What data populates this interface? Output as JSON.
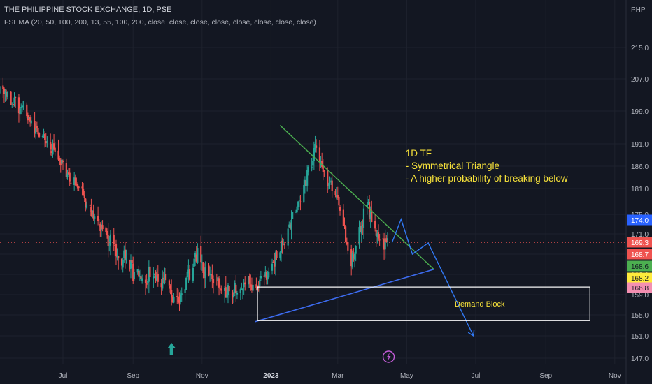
{
  "header": {
    "title": "THE PHILIPPINE STOCK EXCHANGE, 1D, PSE",
    "indicator": "FSEMA (20, 50, 100, 200, 13, 55, 100, 200, close, close, close, close, close, close, close, close)",
    "currency": "PHP"
  },
  "colors": {
    "background": "#131722",
    "grid": "#1e222d",
    "up": "#26a69a",
    "down": "#ef5350",
    "resistance_line": "#4caf50",
    "support_line": "#3d6cf0",
    "projection": "#3179f5",
    "annotation_text": "#f7e23a",
    "box": "#ffffff",
    "axis_text": "#b2b5be"
  },
  "chart_data": {
    "type": "candlestick",
    "x_ticks": [
      "Jul",
      "Sep",
      "Nov",
      "2023",
      "Mar",
      "May",
      "Jul",
      "Sep",
      "Nov"
    ],
    "y_ticks": [
      147.0,
      151.0,
      155.0,
      159.0,
      163.0,
      167.0,
      171.0,
      175.0,
      181.0,
      186.0,
      191.0,
      199.0,
      207.0,
      215.0
    ],
    "price_labels": [
      {
        "value": "174.0",
        "color": "#2962ff"
      },
      {
        "value": "169.3",
        "color": "#ef5350"
      },
      {
        "value": "168.7",
        "color": "#ef5350"
      },
      {
        "value": "168.6",
        "color": "#4caf50"
      },
      {
        "value": "168.2",
        "color": "#ffeb3b"
      },
      {
        "value": "166.8",
        "color": "#f48fb1"
      }
    ],
    "series_path": [
      [
        "2022-05-02",
        205
      ],
      [
        "2022-05-20",
        201
      ],
      [
        "2022-06-05",
        196
      ],
      [
        "2022-06-20",
        190
      ],
      [
        "2022-07-01",
        186
      ],
      [
        "2022-07-12",
        182
      ],
      [
        "2022-07-22",
        178
      ],
      [
        "2022-08-01",
        173
      ],
      [
        "2022-08-10",
        170
      ],
      [
        "2022-08-20",
        167
      ],
      [
        "2022-08-30",
        164
      ],
      [
        "2022-09-10",
        163
      ],
      [
        "2022-09-20",
        163
      ],
      [
        "2022-09-28",
        162
      ],
      [
        "2022-10-05",
        159
      ],
      [
        "2022-10-12",
        157
      ],
      [
        "2022-10-17",
        161
      ],
      [
        "2022-10-22",
        163
      ],
      [
        "2022-10-28",
        168
      ],
      [
        "2022-11-03",
        164
      ],
      [
        "2022-11-10",
        162
      ],
      [
        "2022-11-18",
        160
      ],
      [
        "2022-11-26",
        159
      ],
      [
        "2022-12-02",
        160
      ],
      [
        "2022-12-10",
        162
      ],
      [
        "2022-12-18",
        160
      ],
      [
        "2022-12-28",
        163
      ],
      [
        "2023-01-06",
        167
      ],
      [
        "2023-01-14",
        170
      ],
      [
        "2023-01-22",
        176
      ],
      [
        "2023-01-30",
        181
      ],
      [
        "2023-02-04",
        186
      ],
      [
        "2023-02-09",
        190
      ],
      [
        "2023-02-14",
        186
      ],
      [
        "2023-02-20",
        183
      ],
      [
        "2023-02-26",
        180
      ],
      [
        "2023-03-04",
        176
      ],
      [
        "2023-03-08",
        171
      ],
      [
        "2023-03-13",
        165
      ],
      [
        "2023-03-18",
        170
      ],
      [
        "2023-03-23",
        174
      ],
      [
        "2023-03-28",
        177
      ],
      [
        "2023-04-02",
        174
      ],
      [
        "2023-04-08",
        168
      ],
      [
        "2023-04-14",
        169
      ]
    ],
    "trendlines": {
      "resistance": [
        [
          "2023-01-09",
          195.5
        ],
        [
          "2023-05-25",
          164.0
        ]
      ],
      "support": [
        [
          "2022-12-18",
          153.7
        ],
        [
          "2023-05-25",
          164.0
        ]
      ],
      "projection": [
        [
          "2023-04-18",
          169.3
        ],
        [
          "2023-04-26",
          174.0
        ],
        [
          "2023-05-06",
          167.0
        ],
        [
          "2023-05-20",
          169.2
        ],
        [
          "2023-06-29",
          151.0
        ]
      ]
    },
    "demand_block": {
      "label": "Demand Block",
      "x_from": "2022-12-20",
      "x_to": "2023-10-10",
      "y_from": 153.9,
      "y_to": 160.5
    },
    "annotation": {
      "lines": [
        "1D TF",
        "- Symmetrical Triangle",
        "- A higher probability of breaking  below"
      ],
      "x": "2023-04-30",
      "y": 189.0
    },
    "last_price": 169.3
  }
}
